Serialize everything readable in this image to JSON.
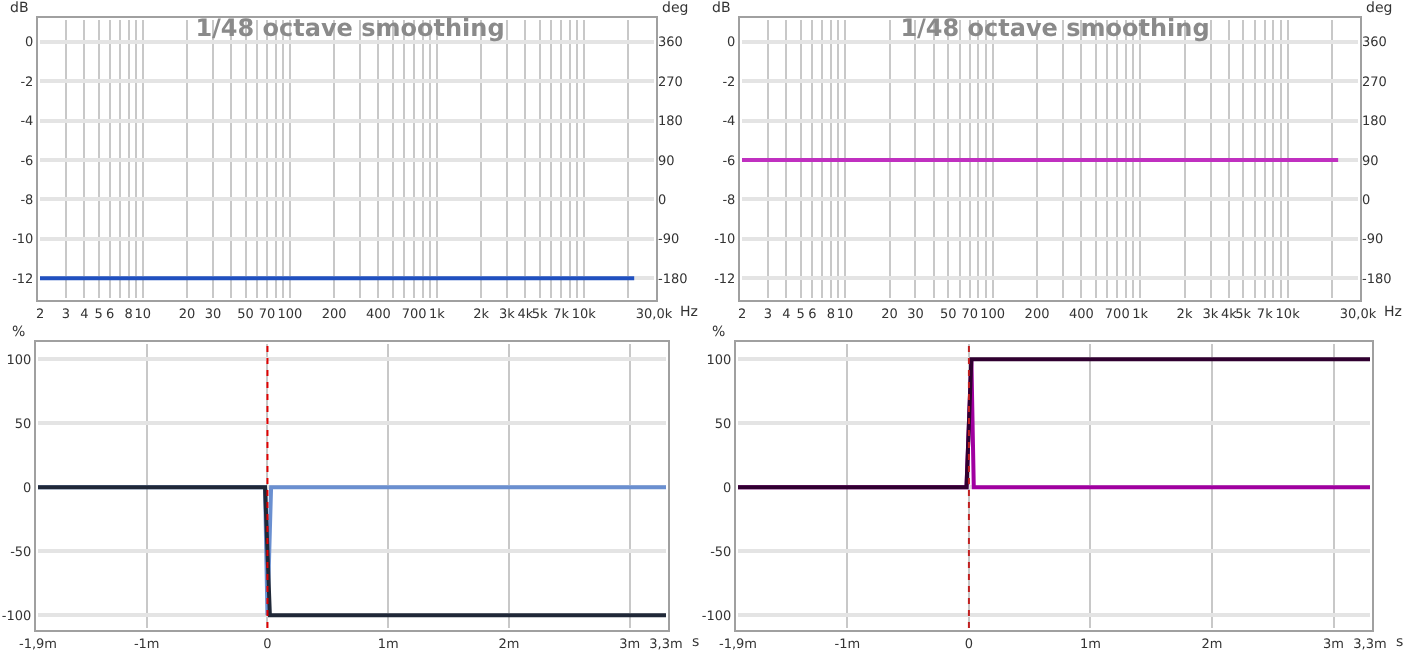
{
  "chart_data": [
    {
      "type": "line",
      "title": "1/48 octave smoothing",
      "xlabel": "Hz",
      "ylabel": "dB",
      "y2label": "deg",
      "log": "x",
      "grid": true,
      "xlim": [
        2,
        30000
      ],
      "ylim": [
        -13,
        1.1
      ],
      "y2lim": [
        -225,
        409.5
      ],
      "xticks": [
        2,
        3,
        4,
        5,
        6,
        {
          "value": 7,
          "label": null
        },
        8,
        {
          "value": 9,
          "label": null
        },
        10,
        20,
        30,
        {
          "value": 40,
          "label": null
        },
        50,
        {
          "value": 60,
          "label": null
        },
        70,
        {
          "value": 80,
          "label": null
        },
        {
          "value": 90,
          "label": null
        },
        100,
        200,
        {
          "value": 300,
          "label": null
        },
        400,
        {
          "value": 500,
          "label": null
        },
        {
          "value": 600,
          "label": null
        },
        700,
        {
          "value": 800,
          "label": null
        },
        {
          "value": 900,
          "label": null
        },
        {
          "value": 1000,
          "label": "1k"
        },
        {
          "value": 2000,
          "label": "2k"
        },
        {
          "value": 3000,
          "label": "3k"
        },
        {
          "value": 4000,
          "label": "4k"
        },
        {
          "value": 5000,
          "label": "5k"
        },
        {
          "value": 6000,
          "label": null
        },
        {
          "value": 7000,
          "label": "7k"
        },
        {
          "value": 8000,
          "label": null
        },
        {
          "value": 9000,
          "label": null
        },
        {
          "value": 10000,
          "label": "10k"
        },
        {
          "value": 20000,
          "label": null
        },
        {
          "value": 30000,
          "label": "30,0k"
        }
      ],
      "yticks": [
        0,
        -2,
        -4,
        -6,
        -8,
        -10,
        -12
      ],
      "y2ticks": [
        360,
        270,
        180,
        90,
        0,
        -90,
        -180
      ],
      "series": [
        {
          "color": "#2050c0",
          "x": [
            2,
            22000
          ],
          "values": [
            -12,
            -12
          ]
        }
      ]
    },
    {
      "type": "line",
      "title": "1/48 octave smoothing",
      "xlabel": "Hz",
      "ylabel": "dB",
      "y2label": "deg",
      "log": "x",
      "grid": true,
      "xlim": [
        2,
        30000
      ],
      "ylim": [
        -13,
        1.1
      ],
      "y2lim": [
        -225,
        409.5
      ],
      "xticks": [
        2,
        3,
        4,
        5,
        6,
        {
          "value": 7,
          "label": null
        },
        8,
        {
          "value": 9,
          "label": null
        },
        10,
        20,
        30,
        {
          "value": 40,
          "label": null
        },
        50,
        {
          "value": 60,
          "label": null
        },
        70,
        {
          "value": 80,
          "label": null
        },
        {
          "value": 90,
          "label": null
        },
        100,
        200,
        {
          "value": 300,
          "label": null
        },
        400,
        {
          "value": 500,
          "label": null
        },
        {
          "value": 600,
          "label": null
        },
        700,
        {
          "value": 800,
          "label": null
        },
        {
          "value": 900,
          "label": null
        },
        {
          "value": 1000,
          "label": "1k"
        },
        {
          "value": 2000,
          "label": "2k"
        },
        {
          "value": 3000,
          "label": "3k"
        },
        {
          "value": 4000,
          "label": "4k"
        },
        {
          "value": 5000,
          "label": "5k"
        },
        {
          "value": 6000,
          "label": null
        },
        {
          "value": 7000,
          "label": "7k"
        },
        {
          "value": 8000,
          "label": null
        },
        {
          "value": 9000,
          "label": null
        },
        {
          "value": 10000,
          "label": "10k"
        },
        {
          "value": 20000,
          "label": null
        },
        {
          "value": 30000,
          "label": "30,0k"
        }
      ],
      "yticks": [
        0,
        -2,
        -4,
        -6,
        -8,
        -10,
        -12
      ],
      "y2ticks": [
        360,
        270,
        180,
        90,
        0,
        -90,
        -180
      ],
      "series": [
        {
          "color": "#c030c0",
          "x": [
            2,
            22000
          ],
          "values": [
            -6,
            -6
          ]
        }
      ]
    },
    {
      "type": "line",
      "xlabel": "s",
      "ylabel": "%",
      "grid": true,
      "xlim": [
        -1.9,
        3.3
      ],
      "ylim": [
        -110,
        112
      ],
      "xticks": [
        {
          "value": -1.9,
          "label": "-1,9m"
        },
        {
          "value": -1,
          "label": "-1m"
        },
        0,
        {
          "value": 1,
          "label": "1m"
        },
        {
          "value": 2,
          "label": "2m"
        },
        {
          "value": 3,
          "label": "3m"
        },
        {
          "value": 3.3,
          "label": "3,3m"
        }
      ],
      "yticks": [
        100,
        50,
        0,
        -50,
        -100
      ],
      "ref_lines": [
        {
          "axis": "x",
          "value": 0,
          "color": "#e00000",
          "line_style": "dotted"
        }
      ],
      "series": [
        {
          "color": "#6a8fd0",
          "x": [
            -1.9,
            -0.02,
            0,
            0.03,
            3.3
          ],
          "values": [
            0,
            0,
            -100,
            0,
            0
          ]
        },
        {
          "color": "#202838",
          "x": [
            -1.9,
            -0.02,
            0.02,
            3.3
          ],
          "values": [
            0,
            0,
            -100,
            -100
          ]
        }
      ]
    },
    {
      "type": "line",
      "xlabel": "s",
      "ylabel": "%",
      "grid": true,
      "xlim": [
        -1.9,
        3.3
      ],
      "ylim": [
        -110,
        112
      ],
      "xticks": [
        {
          "value": -1.9,
          "label": "-1,9m"
        },
        {
          "value": -1,
          "label": "-1m"
        },
        0,
        {
          "value": 1,
          "label": "1m"
        },
        {
          "value": 2,
          "label": "2m"
        },
        {
          "value": 3,
          "label": "3m"
        },
        {
          "value": 3.3,
          "label": "3,3m"
        }
      ],
      "yticks": [
        100,
        50,
        0,
        -50,
        -100
      ],
      "ref_lines": [
        {
          "axis": "x",
          "value": 0,
          "color": "#c02020",
          "line_style": "dotted"
        }
      ],
      "series": [
        {
          "color": "#a000a0",
          "x": [
            -1.9,
            -0.02,
            0.02,
            0.04,
            3.3
          ],
          "values": [
            0,
            0,
            100,
            0,
            0
          ]
        },
        {
          "color": "#300030",
          "x": [
            -1.9,
            -0.02,
            0.02,
            3.3
          ],
          "values": [
            0,
            0,
            100,
            100
          ]
        }
      ]
    }
  ]
}
